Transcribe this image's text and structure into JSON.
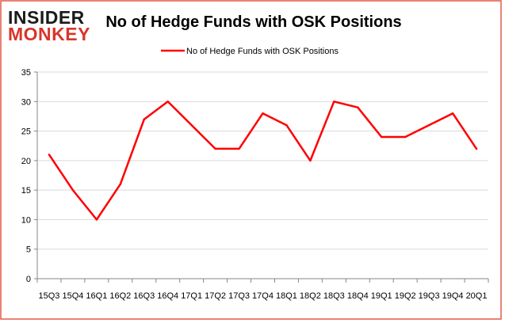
{
  "logo": {
    "line1": "INSIDER",
    "line2": "MONKEY"
  },
  "colors": {
    "frame": "#e05a47",
    "series": "#ff0000",
    "grid": "#d9d9d9",
    "axis": "#868686",
    "text": "#000000",
    "logo_dark": "#1a1a1a",
    "logo_red": "#d9352b"
  },
  "chart_data": {
    "type": "line",
    "title": "No of Hedge Funds with OSK Positions",
    "xlabel": "",
    "ylabel": "",
    "ylim": [
      0,
      35
    ],
    "yticks": [
      0,
      5,
      10,
      15,
      20,
      25,
      30,
      35
    ],
    "grid": true,
    "legend_position": "top",
    "categories": [
      "15Q3",
      "15Q4",
      "16Q1",
      "16Q2",
      "16Q3",
      "16Q4",
      "17Q1",
      "17Q2",
      "17Q3",
      "17Q4",
      "18Q1",
      "18Q2",
      "18Q3",
      "18Q4",
      "19Q1",
      "19Q2",
      "19Q3",
      "19Q4",
      "20Q1"
    ],
    "series": [
      {
        "name": "No of Hedge Funds with OSK Positions",
        "values": [
          21,
          15,
          10,
          16,
          27,
          30,
          26,
          22,
          22,
          28,
          26,
          20,
          30,
          29,
          24,
          24,
          26,
          28,
          22
        ]
      }
    ]
  }
}
